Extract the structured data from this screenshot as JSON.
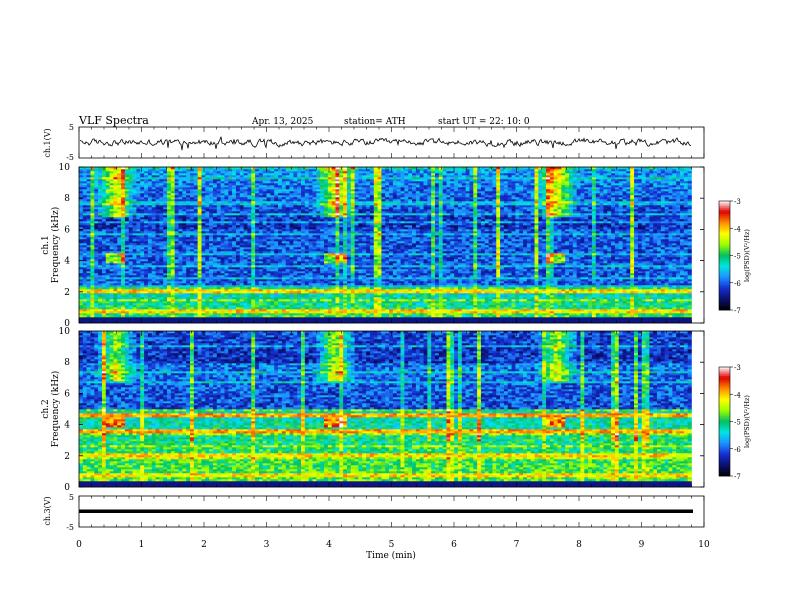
{
  "header": {
    "title": "VLF Spectra",
    "date": "Apr. 13, 2025",
    "station": "station= ATH",
    "start": "start UT = 22: 10: 0"
  },
  "chart_data": [
    {
      "type": "line",
      "ylabel": "ch.1(V)",
      "x_range": [
        0,
        10
      ],
      "ylim": [
        -5,
        5
      ],
      "y_ticks": [
        "5",
        "-5"
      ],
      "description_values": {
        "baseline": 0,
        "amplitude_approx": 1
      }
    },
    {
      "type": "heatmap",
      "ylabel_top": "ch.1",
      "ylabel": "Frequency (kHz)",
      "ylim": [
        0,
        10
      ],
      "y_ticks": [
        "0",
        "2",
        "4",
        "6",
        "8",
        "10"
      ],
      "x_range": [
        0,
        9.8
      ],
      "bursts_min": [
        0.6,
        4.1,
        7.65
      ],
      "colorbar": {
        "label": "log(PSD)(V²/Hz)",
        "range": [
          -7,
          -3
        ],
        "ticks": [
          "-3",
          "-4",
          "-5",
          "-6",
          "-7"
        ]
      }
    },
    {
      "type": "heatmap",
      "ylabel_top": "ch.2",
      "ylabel": "Frequency (kHz)",
      "ylim": [
        0,
        10
      ],
      "y_ticks": [
        "0",
        "2",
        "4",
        "6",
        "8",
        "10"
      ],
      "x_range": [
        0,
        9.8
      ],
      "bursts_min": [
        0.6,
        4.1,
        7.65
      ],
      "colorbar": {
        "label": "log(PSD)(V²/Hz)",
        "range": [
          -7,
          -3
        ],
        "ticks": [
          "-3",
          "-4",
          "-5",
          "-6",
          "-7"
        ]
      }
    },
    {
      "type": "line",
      "ylabel": "ch.3(V)",
      "ylim": [
        -5,
        5
      ],
      "y_ticks": [
        "5",
        "-5"
      ],
      "constant_value": 0,
      "x_range": [
        0,
        9.8
      ]
    }
  ],
  "x_axis": {
    "label": "Time (min)",
    "ticks": [
      "0",
      "1",
      "2",
      "3",
      "4",
      "5",
      "6",
      "7",
      "8",
      "9",
      "10"
    ],
    "range": [
      0,
      10
    ]
  },
  "colors": {
    "cmap": [
      "#000000",
      "#0b1070",
      "#1530d0",
      "#1e90ff",
      "#00e5e5",
      "#00c060",
      "#9cff00",
      "#ffff00",
      "#ff8c00",
      "#e00000",
      "#ffffff"
    ]
  }
}
